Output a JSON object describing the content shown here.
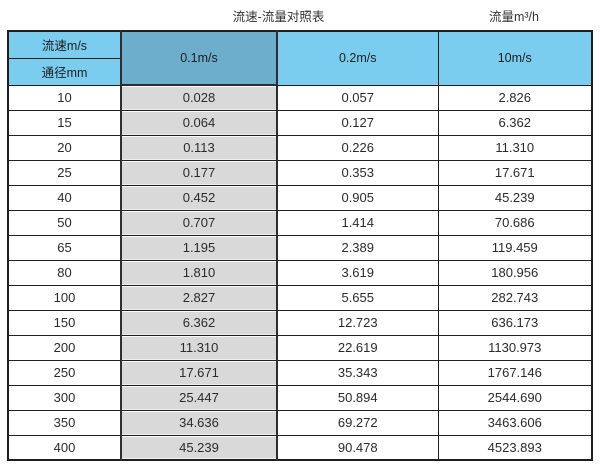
{
  "titles": {
    "main": "流速-流量对照表",
    "unit": "流量m³/h"
  },
  "colors": {
    "header_blue": "#7bcdf0",
    "highlight_blue": "#6daecd",
    "highlight_gray": "#d9d9d9",
    "border": "#1f1f1f"
  },
  "chart_data": {
    "type": "table",
    "title": "流速-流量对照表",
    "unit_label": "流量m³/h",
    "header": {
      "corner_top": "流速m/s",
      "corner_bottom": "通径mm",
      "columns": [
        "0.1m/s",
        "0.2m/s",
        "10m/s"
      ]
    },
    "rows": [
      [
        "10",
        "0.028",
        "0.057",
        "2.826"
      ],
      [
        "15",
        "0.064",
        "0.127",
        "6.362"
      ],
      [
        "20",
        "0.113",
        "0.226",
        "11.310"
      ],
      [
        "25",
        "0.177",
        "0.353",
        "17.671"
      ],
      [
        "40",
        "0.452",
        "0.905",
        "45.239"
      ],
      [
        "50",
        "0.707",
        "1.414",
        "70.686"
      ],
      [
        "65",
        "1.195",
        "2.389",
        "119.459"
      ],
      [
        "80",
        "1.810",
        "3.619",
        "180.956"
      ],
      [
        "100",
        "2.827",
        "5.655",
        "282.743"
      ],
      [
        "150",
        "6.362",
        "12.723",
        "636.173"
      ],
      [
        "200",
        "11.310",
        "22.619",
        "1130.973"
      ],
      [
        "250",
        "17.671",
        "35.343",
        "1767.146"
      ],
      [
        "300",
        "25.447",
        "50.894",
        "2544.690"
      ],
      [
        "350",
        "34.636",
        "69.272",
        "3463.606"
      ],
      [
        "400",
        "45.239",
        "90.478",
        "4523.893"
      ]
    ]
  }
}
